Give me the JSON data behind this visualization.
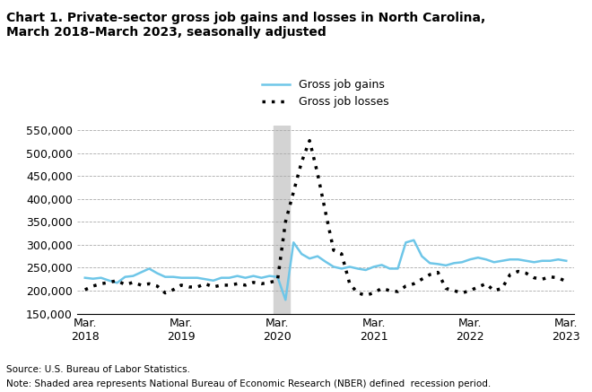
{
  "title": "Chart 1. Private-sector gross job gains and losses in North Carolina,\nMarch 2018–March 2023, seasonally adjusted",
  "source": "Source: U.S. Bureau of Labor Statistics.",
  "note": "Note: Shaded area represents National Bureau of Economic Research (NBER) defined  recession period.",
  "ylim": [
    150000,
    560000
  ],
  "yticks": [
    150000,
    200000,
    250000,
    300000,
    350000,
    400000,
    450000,
    500000,
    550000
  ],
  "recession_start": 24,
  "recession_end": 26,
  "gains_color": "#6ec6e8",
  "losses_color": "#000000",
  "recession_color": "#d3d3d3",
  "gains_label": "Gross job gains",
  "losses_label": "Gross job losses",
  "gains": [
    228000,
    226000,
    228000,
    222000,
    217000,
    230000,
    232000,
    240000,
    248000,
    238000,
    230000,
    230000,
    228000,
    228000,
    228000,
    225000,
    222000,
    228000,
    228000,
    232000,
    228000,
    232000,
    228000,
    232000,
    230000,
    180000,
    305000,
    280000,
    270000,
    275000,
    263000,
    252000,
    248000,
    252000,
    248000,
    245000,
    252000,
    256000,
    248000,
    248000,
    305000,
    310000,
    275000,
    260000,
    258000,
    255000,
    260000,
    262000,
    268000,
    272000,
    268000,
    262000,
    265000,
    268000,
    268000,
    265000,
    262000,
    265000,
    265000,
    268000,
    265000
  ],
  "losses": [
    202000,
    210000,
    215000,
    218000,
    222000,
    213000,
    218000,
    212000,
    215000,
    210000,
    195000,
    202000,
    212000,
    208000,
    208000,
    215000,
    208000,
    212000,
    212000,
    215000,
    212000,
    218000,
    215000,
    218000,
    222000,
    350000,
    415000,
    480000,
    527000,
    455000,
    370000,
    288000,
    280000,
    215000,
    195000,
    190000,
    195000,
    205000,
    200000,
    198000,
    210000,
    215000,
    225000,
    235000,
    240000,
    205000,
    200000,
    195000,
    200000,
    208000,
    215000,
    200000,
    205000,
    235000,
    242000,
    238000,
    228000,
    225000,
    230000,
    228000,
    220000
  ],
  "n_points": 61,
  "x_tick_positions": [
    0,
    12,
    24,
    36,
    48,
    60
  ],
  "x_tick_labels": [
    "Mar.\n2018",
    "Mar.\n2019",
    "Mar.\n2020",
    "Mar.\n2021",
    "Mar.\n2022",
    "Mar.\n2023"
  ]
}
